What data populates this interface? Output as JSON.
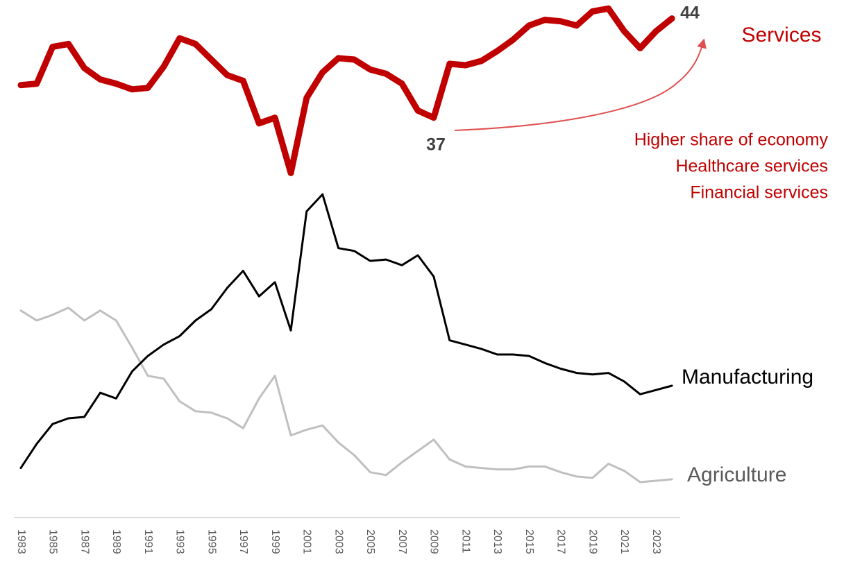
{
  "chart_data": {
    "type": "line",
    "categories": [
      "1983",
      null,
      "1985",
      null,
      "1987",
      null,
      "1989",
      null,
      "1991",
      null,
      "1993",
      null,
      "1995",
      null,
      "1997",
      null,
      "1999",
      null,
      "2001",
      null,
      "2003",
      null,
      "2005",
      null,
      "2007",
      null,
      "2009",
      null,
      "2011",
      null,
      "2013",
      null,
      "2015",
      null,
      "2017",
      null,
      "2019",
      null,
      "2021",
      null,
      "2023",
      null
    ],
    "series": [
      {
        "name": "Services",
        "color": "#c00000",
        "values": [
          39.3,
          39.4,
          42.0,
          42.2,
          40.5,
          39.7,
          39.4,
          39.0,
          39.1,
          40.6,
          42.6,
          42.2,
          41.1,
          40.0,
          39.6,
          36.6,
          37.0,
          33.1,
          38.4,
          40.2,
          41.2,
          41.1,
          40.4,
          40.1,
          39.4,
          37.5,
          37,
          40.8,
          40.7,
          41.0,
          41.7,
          42.5,
          43.5,
          43.9,
          43.8,
          43.5,
          44.5,
          44.7,
          43.1,
          41.9,
          43.1,
          44
        ]
      },
      {
        "name": "Manufacturing",
        "color": "#000000",
        "values": [
          12.3,
          14.0,
          15.4,
          15.8,
          15.9,
          17.6,
          17.2,
          19.1,
          20.2,
          21.0,
          21.6,
          22.7,
          23.5,
          25.0,
          26.2,
          24.4,
          25.4,
          22.0,
          30.4,
          31.6,
          27.8,
          27.6,
          26.9,
          27.0,
          26.6,
          27.3,
          25.8,
          21.3,
          21.0,
          20.7,
          20.3,
          20.3,
          20.2,
          19.7,
          19.3,
          19.0,
          18.9,
          19.0,
          18.4,
          17.5,
          17.8,
          18.1
        ]
      },
      {
        "name": "Agriculture",
        "color": "#bfbfbf",
        "values": [
          23.4,
          22.7,
          23.1,
          23.6,
          22.7,
          23.4,
          22.7,
          20.8,
          18.8,
          18.6,
          17.0,
          16.3,
          16.2,
          15.8,
          15.1,
          17.2,
          18.8,
          14.6,
          15.0,
          15.3,
          14.1,
          13.2,
          12.0,
          11.8,
          12.7,
          13.5,
          14.3,
          12.9,
          12.4,
          12.3,
          12.2,
          12.2,
          12.4,
          12.4,
          12.0,
          11.7,
          11.6,
          12.6,
          12.1,
          11.3,
          11.4,
          11.5
        ]
      }
    ],
    "annotations": [
      "Higher share of economy",
      "Healthcare services",
      "Financial services"
    ],
    "ylim": [
      9.1,
      45.3
    ]
  }
}
